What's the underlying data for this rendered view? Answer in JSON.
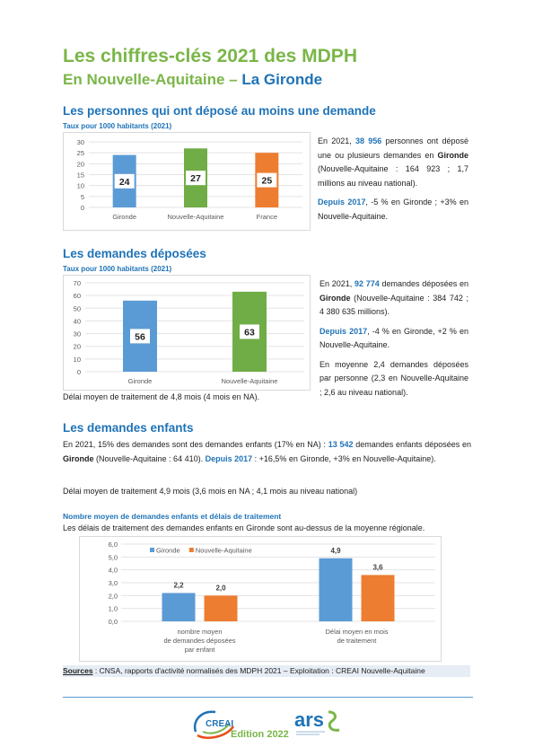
{
  "header": {
    "title_line1": "Les chiffres-clés 2021 des MDPH",
    "title_line2_prefix": "En Nouvelle-Aquitaine – ",
    "title_line2_dept": "La Gironde"
  },
  "section1": {
    "heading": "Les personnes qui ont déposé au moins une demande",
    "subheading": "Taux pour 1000 habitants (2021)",
    "text": {
      "p1_a": "En 2021, ",
      "p1_num": "38 956",
      "p1_b": " personnes ont déposé une ou plusieurs demandes en ",
      "p1_dept": "Gironde",
      "p1_c": " (Nouvelle-Aquitaine : 164 923 ; 1,7 millions au niveau national).",
      "p2_lead": "Depuis 2017",
      "p2_rest": ", -5 % en Gironde ; +3% en Nouvelle-Aquitaine."
    }
  },
  "section2": {
    "heading": "Les demandes déposées",
    "subheading": "Taux pour 1000 habitants (2021)",
    "text": {
      "p1_a": "En 2021, ",
      "p1_num": "92 774",
      "p1_b": " demandes déposées en ",
      "p1_dept": "Gironde",
      "p1_c": " (Nouvelle-Aquitaine : 384 742 ; 4 380 635 millions).",
      "p2_lead": "Depuis 2017",
      "p2_rest": ", -4 % en Gironde, +2 % en Nouvelle-Aquitaine.",
      "p3": "En moyenne 2,4 demandes déposées par personne (2,3 en Nouvelle-Aquitaine ; 2,6 au niveau national)."
    },
    "delay": "Délai moyen de traitement de 4,8 mois (4 mois en NA)."
  },
  "section3": {
    "heading": "Les demandes enfants",
    "p1_a": "En 2021, 15% des demandes sont des demandes enfants (17% en NA) : ",
    "p1_num": "13 542",
    "p1_b": " demandes enfants déposées en ",
    "p1_dept": "Gironde",
    "p1_c": " (Nouvelle-Aquitaine : 64 410). ",
    "p1_lead": "Depuis 2017",
    "p1_d": " : +16,5% en Gironde, +3% en Nouvelle-Aquitaine).",
    "p2": "Délai moyen de traitement 4,9 mois (3,6 mois en NA ; 4,1 mois au niveau national)",
    "chart_title": "Nombre moyen de demandes enfants et délais de traitement",
    "chart_caption": "Les délais de traitement des demandes enfants en Gironde sont au-dessus de la moyenne régionale."
  },
  "footer": {
    "sources_label": "Sources",
    "sources_text": " : CNSA, rapports d'activité normalisés des MDPH 2021 – Exploitation : CREAI Nouvelle-Aquitaine",
    "logo_creai": "CREAI",
    "logo_ars": "ars",
    "edition": "Edition 2022"
  },
  "colors": {
    "blue": "#5b9bd5",
    "green": "#70ad47",
    "orange": "#ed7d31",
    "heading_blue": "#1f73b7",
    "title_green": "#7ab648"
  },
  "chart_data": [
    {
      "type": "bar",
      "categories": [
        "Gironde",
        "Nouvelle-Aquitaine",
        "France"
      ],
      "values": [
        24,
        27,
        25
      ],
      "colors": [
        "#5b9bd5",
        "#70ad47",
        "#ed7d31"
      ],
      "ylim": [
        0,
        30
      ],
      "yticks": [
        "0",
        "5",
        "10",
        "15",
        "20",
        "25",
        "30"
      ],
      "title": "",
      "xlabel": "",
      "ylabel": ""
    },
    {
      "type": "bar",
      "categories": [
        "Gironde",
        "Nouvelle-Aquitaine"
      ],
      "values": [
        56,
        63
      ],
      "colors": [
        "#5b9bd5",
        "#70ad47"
      ],
      "ylim": [
        0,
        70
      ],
      "yticks": [
        "0",
        "10",
        "20",
        "30",
        "40",
        "50",
        "60",
        "70"
      ],
      "title": "",
      "xlabel": "",
      "ylabel": ""
    },
    {
      "type": "bar",
      "categories": [
        "nombre moyen de demandes déposées par enfant",
        "Délai moyen en mois de traitement"
      ],
      "category_lines": [
        [
          "nombre moyen",
          "de demandes déposées",
          "par enfant"
        ],
        [
          "Délai moyen en mois",
          "de traitement"
        ]
      ],
      "series": [
        {
          "name": "Gironde",
          "values": [
            2.2,
            4.9
          ],
          "labels": [
            "2,2",
            "4,9"
          ],
          "color": "#5b9bd5"
        },
        {
          "name": "Nouvelle-Aquitaine",
          "values": [
            2.0,
            3.6
          ],
          "labels": [
            "2,0",
            "3,6"
          ],
          "color": "#ed7d31"
        }
      ],
      "ylim": [
        0,
        6
      ],
      "yticks": [
        "0,0",
        "1,0",
        "2,0",
        "3,0",
        "4,0",
        "5,0",
        "6,0"
      ],
      "legend": "top-left",
      "title": "",
      "xlabel": "",
      "ylabel": ""
    }
  ]
}
